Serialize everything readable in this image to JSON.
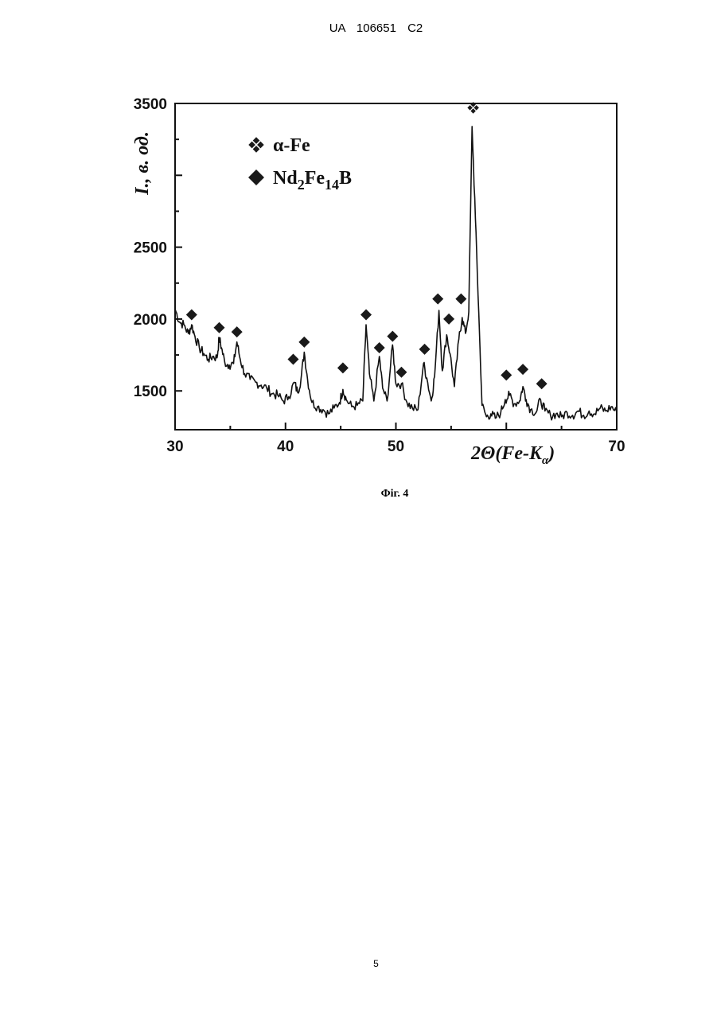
{
  "header": {
    "text": "UA 106651 C2"
  },
  "figure": {
    "caption": "Фіг. 4"
  },
  "footer": {
    "page_number": "5"
  },
  "chart_data": {
    "type": "line",
    "xlabel_main": "2Θ(Fe-K",
    "xlabel_sub": "α",
    "xlabel_close": ")",
    "ylabel": "I., в. од.",
    "xlim": [
      30,
      70
    ],
    "ylim": [
      1230,
      3500
    ],
    "x_ticks": [
      30,
      40,
      50,
      70
    ],
    "x_tick_labels": [
      "30",
      "40",
      "50",
      "70"
    ],
    "y_ticks": [
      1500,
      2000,
      2500,
      3500
    ],
    "y_tick_labels": [
      "1500",
      "2000",
      "2500",
      "3500"
    ],
    "grid": false,
    "legend_position": "top-left",
    "legend": [
      {
        "marker": "four-diamond",
        "label_base": "α-Fe",
        "label_sub1": "",
        "label_mid": "",
        "label_sub2": "",
        "label_end": ""
      },
      {
        "marker": "diamond",
        "label_base": "Nd",
        "label_sub1": "2",
        "label_mid": "Fe",
        "label_sub2": "14",
        "label_end": "B"
      }
    ],
    "series": [
      {
        "points": [
          [
            30.0,
            2070
          ],
          [
            30.4,
            1980
          ],
          [
            30.8,
            1960
          ],
          [
            31.2,
            1900
          ],
          [
            31.5,
            1960
          ],
          [
            31.8,
            1880
          ],
          [
            32.2,
            1800
          ],
          [
            32.6,
            1760
          ],
          [
            33.0,
            1720
          ],
          [
            33.4,
            1740
          ],
          [
            33.8,
            1730
          ],
          [
            34.0,
            1870
          ],
          [
            34.2,
            1800
          ],
          [
            34.5,
            1700
          ],
          [
            34.9,
            1680
          ],
          [
            35.3,
            1690
          ],
          [
            35.6,
            1840
          ],
          [
            35.9,
            1720
          ],
          [
            36.3,
            1620
          ],
          [
            36.8,
            1580
          ],
          [
            37.3,
            1560
          ],
          [
            37.8,
            1540
          ],
          [
            38.3,
            1520
          ],
          [
            38.8,
            1480
          ],
          [
            39.3,
            1470
          ],
          [
            39.8,
            1430
          ],
          [
            40.3,
            1460
          ],
          [
            40.8,
            1560
          ],
          [
            41.1,
            1490
          ],
          [
            41.4,
            1580
          ],
          [
            41.7,
            1770
          ],
          [
            42.0,
            1580
          ],
          [
            42.4,
            1420
          ],
          [
            42.9,
            1390
          ],
          [
            43.4,
            1370
          ],
          [
            43.9,
            1340
          ],
          [
            44.4,
            1380
          ],
          [
            44.9,
            1420
          ],
          [
            45.2,
            1510
          ],
          [
            45.5,
            1440
          ],
          [
            46.0,
            1390
          ],
          [
            46.5,
            1400
          ],
          [
            47.0,
            1430
          ],
          [
            47.3,
            1960
          ],
          [
            47.6,
            1620
          ],
          [
            48.0,
            1430
          ],
          [
            48.5,
            1740
          ],
          [
            48.8,
            1520
          ],
          [
            49.2,
            1430
          ],
          [
            49.7,
            1820
          ],
          [
            50.0,
            1550
          ],
          [
            50.5,
            1550
          ],
          [
            51.0,
            1420
          ],
          [
            51.5,
            1380
          ],
          [
            52.0,
            1370
          ],
          [
            52.5,
            1690
          ],
          [
            52.8,
            1590
          ],
          [
            53.2,
            1430
          ],
          [
            53.5,
            1600
          ],
          [
            53.9,
            2060
          ],
          [
            54.2,
            1640
          ],
          [
            54.6,
            1890
          ],
          [
            54.9,
            1760
          ],
          [
            55.3,
            1530
          ],
          [
            55.7,
            1860
          ],
          [
            56.0,
            2010
          ],
          [
            56.3,
            1900
          ],
          [
            56.6,
            2050
          ],
          [
            56.9,
            3340
          ],
          [
            57.2,
            2700
          ],
          [
            57.5,
            2050
          ],
          [
            57.8,
            1400
          ],
          [
            58.2,
            1320
          ],
          [
            58.6,
            1340
          ],
          [
            59.0,
            1310
          ],
          [
            59.5,
            1350
          ],
          [
            59.9,
            1440
          ],
          [
            60.3,
            1470
          ],
          [
            60.7,
            1410
          ],
          [
            61.2,
            1430
          ],
          [
            61.5,
            1530
          ],
          [
            61.8,
            1440
          ],
          [
            62.2,
            1370
          ],
          [
            62.7,
            1350
          ],
          [
            63.1,
            1440
          ],
          [
            63.5,
            1360
          ],
          [
            64.0,
            1330
          ],
          [
            64.5,
            1340
          ],
          [
            65.0,
            1320
          ],
          [
            65.5,
            1350
          ],
          [
            66.0,
            1330
          ],
          [
            66.5,
            1360
          ],
          [
            67.0,
            1330
          ],
          [
            67.5,
            1360
          ],
          [
            68.0,
            1340
          ],
          [
            68.5,
            1380
          ],
          [
            69.0,
            1360
          ],
          [
            69.5,
            1390
          ],
          [
            70.0,
            1350
          ]
        ]
      }
    ],
    "markers": [
      {
        "phase": "α-Fe",
        "x": 57.0,
        "y": 3470
      },
      {
        "phase": "Nd2Fe14B",
        "x": 31.5,
        "y": 2030
      },
      {
        "phase": "Nd2Fe14B",
        "x": 34.0,
        "y": 1940
      },
      {
        "phase": "Nd2Fe14B",
        "x": 35.6,
        "y": 1910
      },
      {
        "phase": "Nd2Fe14B",
        "x": 40.7,
        "y": 1720
      },
      {
        "phase": "Nd2Fe14B",
        "x": 41.7,
        "y": 1840
      },
      {
        "phase": "Nd2Fe14B",
        "x": 45.2,
        "y": 1660
      },
      {
        "phase": "Nd2Fe14B",
        "x": 47.3,
        "y": 2030
      },
      {
        "phase": "Nd2Fe14B",
        "x": 48.5,
        "y": 1800
      },
      {
        "phase": "Nd2Fe14B",
        "x": 49.7,
        "y": 1880
      },
      {
        "phase": "Nd2Fe14B",
        "x": 50.5,
        "y": 1630
      },
      {
        "phase": "Nd2Fe14B",
        "x": 52.6,
        "y": 1790
      },
      {
        "phase": "Nd2Fe14B",
        "x": 53.8,
        "y": 2140
      },
      {
        "phase": "Nd2Fe14B",
        "x": 54.8,
        "y": 2000
      },
      {
        "phase": "Nd2Fe14B",
        "x": 55.9,
        "y": 2140
      },
      {
        "phase": "Nd2Fe14B",
        "x": 60.0,
        "y": 1610
      },
      {
        "phase": "Nd2Fe14B",
        "x": 61.5,
        "y": 1650
      },
      {
        "phase": "Nd2Fe14B",
        "x": 63.2,
        "y": 1550
      }
    ],
    "colors": {
      "line": "#111111",
      "marker": "#1a1a1a",
      "axis": "#111111"
    }
  }
}
